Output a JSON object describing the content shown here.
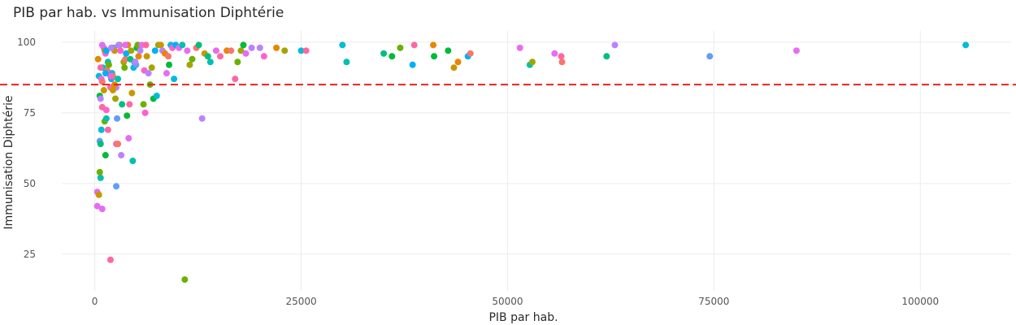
{
  "chart_data": {
    "type": "scatter",
    "title": "PIB par hab. vs Immunisation Diphtérie",
    "xlabel": "PIB par hab.",
    "ylabel": "Immunisation Diphtérie",
    "xlim": [
      -4000,
      111000
    ],
    "ylim": [
      12,
      104
    ],
    "x_ticks": [
      0,
      25000,
      50000,
      75000,
      100000
    ],
    "y_ticks": [
      25,
      50,
      75,
      100
    ],
    "grid": true,
    "legend": "none",
    "reference_line": {
      "y": 85,
      "color": "#e8231f",
      "style": "dashed"
    },
    "palette": [
      "#f8766d",
      "#e58700",
      "#c99800",
      "#a3a500",
      "#6bb100",
      "#00ba38",
      "#00bf7d",
      "#00c0af",
      "#00bcd8",
      "#00b0f6",
      "#619cff",
      "#b983ff",
      "#e76bf3",
      "#fd61d1",
      "#ff67a4"
    ],
    "points": [
      [
        400,
        94,
        1
      ],
      [
        500,
        88,
        8
      ],
      [
        600,
        81,
        5
      ],
      [
        700,
        80,
        11
      ],
      [
        800,
        69,
        8
      ],
      [
        600,
        65,
        10
      ],
      [
        700,
        64,
        6
      ],
      [
        800,
        87,
        12
      ],
      [
        900,
        86,
        0
      ],
      [
        1000,
        91,
        8
      ],
      [
        1100,
        98,
        12
      ],
      [
        1200,
        97,
        3
      ],
      [
        1300,
        96,
        13
      ],
      [
        1400,
        97,
        9
      ],
      [
        1500,
        90,
        0
      ],
      [
        1600,
        93,
        7
      ],
      [
        1700,
        92,
        4
      ],
      [
        1800,
        89,
        13
      ],
      [
        1900,
        84,
        14
      ],
      [
        2000,
        87,
        9
      ],
      [
        2100,
        89,
        8
      ],
      [
        2200,
        88,
        0
      ],
      [
        2300,
        98,
        10
      ],
      [
        2400,
        97,
        2
      ],
      [
        2500,
        80,
        3
      ],
      [
        2600,
        84,
        11
      ],
      [
        2700,
        73,
        10
      ],
      [
        2800,
        87,
        7
      ],
      [
        2900,
        99,
        0
      ],
      [
        3000,
        99,
        2
      ],
      [
        3100,
        97,
        13
      ],
      [
        3300,
        78,
        6
      ],
      [
        3500,
        93,
        3
      ],
      [
        3600,
        91,
        4
      ],
      [
        3700,
        94,
        0
      ],
      [
        3800,
        96,
        9
      ],
      [
        3900,
        74,
        5
      ],
      [
        4000,
        99,
        1
      ],
      [
        4100,
        66,
        12
      ],
      [
        4200,
        78,
        14
      ],
      [
        4300,
        94,
        6
      ],
      [
        4500,
        82,
        2
      ],
      [
        4700,
        91,
        8
      ],
      [
        4800,
        93,
        7
      ],
      [
        5000,
        92,
        10
      ],
      [
        5100,
        98,
        5
      ],
      [
        5200,
        99,
        4
      ],
      [
        5300,
        95,
        1
      ],
      [
        5500,
        97,
        11
      ],
      [
        5700,
        99,
        12
      ],
      [
        5900,
        78,
        4
      ],
      [
        6000,
        90,
        13
      ],
      [
        6100,
        75,
        13
      ],
      [
        6200,
        99,
        14
      ],
      [
        6300,
        95,
        2
      ],
      [
        6500,
        89,
        11
      ],
      [
        6700,
        85,
        4
      ],
      [
        6900,
        91,
        3
      ],
      [
        7100,
        80,
        5
      ],
      [
        7300,
        97,
        9
      ],
      [
        7500,
        81,
        8
      ],
      [
        7700,
        99,
        3
      ],
      [
        8000,
        99,
        2
      ],
      [
        8200,
        97,
        11
      ],
      [
        8500,
        96,
        1
      ],
      [
        8700,
        89,
        12
      ],
      [
        8900,
        95,
        0
      ],
      [
        9000,
        92,
        5
      ],
      [
        9200,
        99,
        8
      ],
      [
        9400,
        98,
        13
      ],
      [
        9600,
        87,
        8
      ],
      [
        9800,
        99,
        9
      ],
      [
        10200,
        98,
        12
      ],
      [
        10600,
        99,
        7
      ],
      [
        10900,
        16,
        4
      ],
      [
        11200,
        97,
        12
      ],
      [
        11500,
        92,
        3
      ],
      [
        11800,
        94,
        4
      ],
      [
        12300,
        98,
        0
      ],
      [
        12600,
        99,
        6
      ],
      [
        13000,
        73,
        11
      ],
      [
        13300,
        96,
        2
      ],
      [
        13700,
        95,
        6
      ],
      [
        14000,
        93,
        7
      ],
      [
        14700,
        97,
        12
      ],
      [
        15200,
        95,
        14
      ],
      [
        16000,
        97,
        1
      ],
      [
        16500,
        97,
        0
      ],
      [
        17000,
        87,
        14
      ],
      [
        17300,
        93,
        4
      ],
      [
        17700,
        97,
        3
      ],
      [
        18000,
        99,
        5
      ],
      [
        18300,
        96,
        12
      ],
      [
        19000,
        98,
        11
      ],
      [
        20000,
        98,
        11
      ],
      [
        20500,
        95,
        13
      ],
      [
        22000,
        98,
        1
      ],
      [
        23000,
        97,
        3
      ],
      [
        25000,
        97,
        8
      ],
      [
        25600,
        97,
        14
      ],
      [
        30000,
        99,
        8
      ],
      [
        30500,
        93,
        7
      ],
      [
        35000,
        96,
        6
      ],
      [
        36000,
        95,
        5
      ],
      [
        37000,
        98,
        4
      ],
      [
        38500,
        92,
        9
      ],
      [
        38700,
        99,
        14
      ],
      [
        41000,
        99,
        1
      ],
      [
        41100,
        95,
        5
      ],
      [
        42800,
        97,
        5
      ],
      [
        43500,
        91,
        2
      ],
      [
        44000,
        93,
        1
      ],
      [
        45200,
        95,
        9
      ],
      [
        45500,
        96,
        0
      ],
      [
        51500,
        98,
        12
      ],
      [
        52700,
        92,
        7
      ],
      [
        53000,
        93,
        3
      ],
      [
        55700,
        96,
        12
      ],
      [
        56500,
        95,
        14
      ],
      [
        56600,
        93,
        0
      ],
      [
        62000,
        95,
        6
      ],
      [
        63000,
        99,
        11
      ],
      [
        74500,
        95,
        10
      ],
      [
        85000,
        97,
        12
      ],
      [
        105500,
        99,
        8
      ],
      [
        300,
        47,
        12
      ],
      [
        500,
        46,
        2
      ],
      [
        900,
        41,
        12
      ],
      [
        300,
        42,
        12
      ],
      [
        700,
        52,
        7
      ],
      [
        600,
        54,
        4
      ],
      [
        1300,
        60,
        5
      ],
      [
        1200,
        72,
        4
      ],
      [
        1400,
        73,
        7
      ],
      [
        1400,
        76,
        13
      ],
      [
        1600,
        69,
        14
      ],
      [
        1900,
        23,
        14
      ],
      [
        2600,
        64,
        14
      ],
      [
        2800,
        64,
        0
      ],
      [
        3200,
        60,
        11
      ],
      [
        2600,
        49,
        10
      ],
      [
        4600,
        58,
        7
      ],
      [
        900,
        77,
        14
      ],
      [
        1100,
        83,
        2
      ],
      [
        1900,
        88,
        13
      ],
      [
        2200,
        83,
        2
      ],
      [
        2400,
        85,
        1
      ],
      [
        700,
        91,
        14
      ],
      [
        900,
        99,
        12
      ],
      [
        1300,
        89,
        9
      ],
      [
        2000,
        98,
        11
      ],
      [
        2900,
        99,
        11
      ],
      [
        3700,
        99,
        12
      ],
      [
        4400,
        97,
        3
      ],
      [
        4900,
        93,
        11
      ]
    ]
  }
}
